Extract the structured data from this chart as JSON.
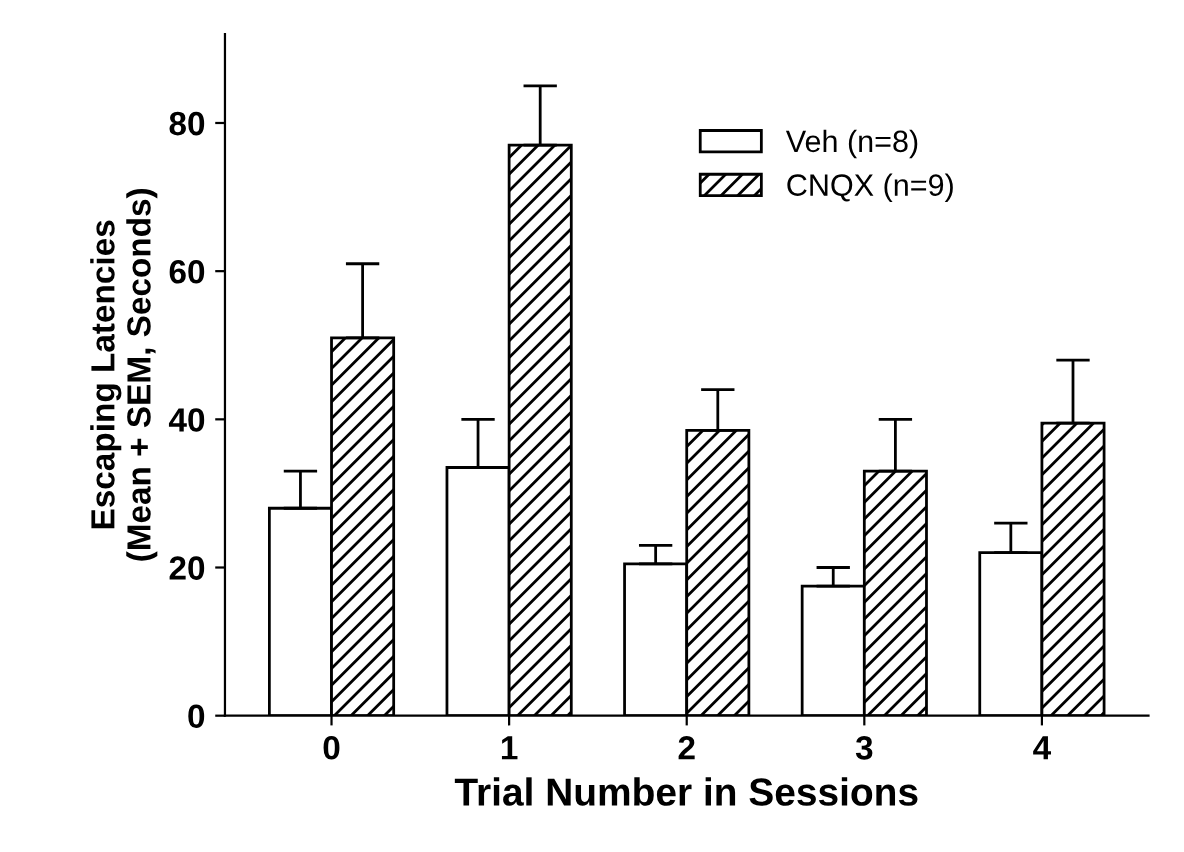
{
  "chart_data": {
    "type": "bar",
    "xlabel": "Trial Number in Sessions",
    "ylabel": "Escaping Latencies\n(Mean + SEM, Seconds)",
    "categories": [
      "0",
      "1",
      "2",
      "3",
      "4"
    ],
    "series": [
      {
        "name": "Veh (n=8)",
        "color": "#ffffff",
        "values": [
          28,
          33.5,
          20.5,
          17.5,
          22
        ],
        "errors": [
          [
            28,
            33
          ],
          [
            33.5,
            40
          ],
          [
            20.5,
            23
          ],
          [
            17.5,
            20
          ],
          [
            22,
            26
          ]
        ]
      },
      {
        "name": "CNQX (n=9)",
        "color": "#000000",
        "values": [
          51,
          77,
          38.5,
          33,
          39.5
        ],
        "errors": [
          [
            51,
            61
          ],
          [
            77,
            85
          ],
          [
            38.5,
            44
          ],
          [
            33,
            40
          ],
          [
            39.5,
            48
          ]
        ]
      }
    ],
    "ylim": [
      0,
      92
    ],
    "yticks": [
      0,
      20,
      40,
      60,
      80
    ],
    "grid": false,
    "legend": "top right"
  }
}
